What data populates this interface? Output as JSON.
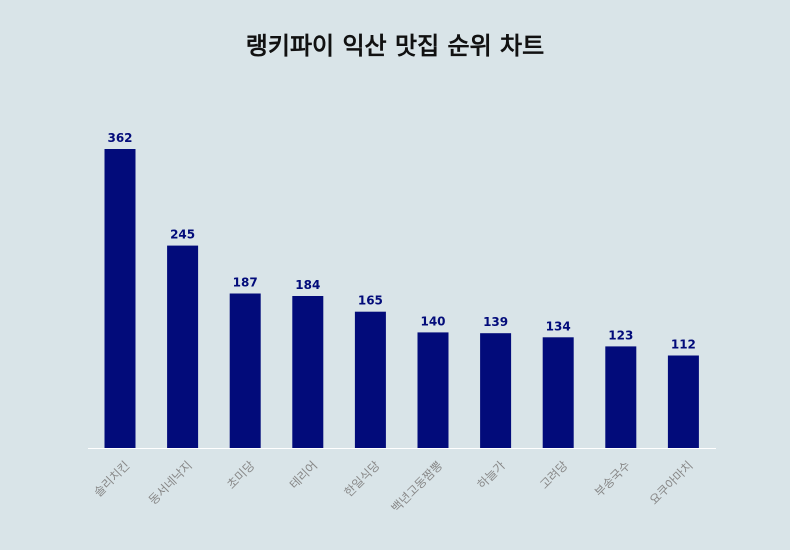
{
  "chart_data": {
    "type": "bar",
    "title": "랭키파이 익산 맛집 순위 차트",
    "categories": [
      "솔리치킨",
      "동서네낙지",
      "초미당",
      "테리어",
      "한일식당",
      "백년고동짬뽕",
      "하늘가",
      "고려당",
      "부송국수",
      "요쿠아마치"
    ],
    "values": [
      362,
      245,
      187,
      184,
      165,
      140,
      139,
      134,
      123,
      112
    ],
    "xlabel": "",
    "ylabel": "",
    "ylim": [
      0,
      362
    ],
    "grid": false,
    "legend": "none",
    "colors": {
      "bar": "#020b7a",
      "value_label": "#020b7a",
      "tick_label": "#888888",
      "axis": "#ffffff",
      "background": "#d9e4e8"
    }
  }
}
